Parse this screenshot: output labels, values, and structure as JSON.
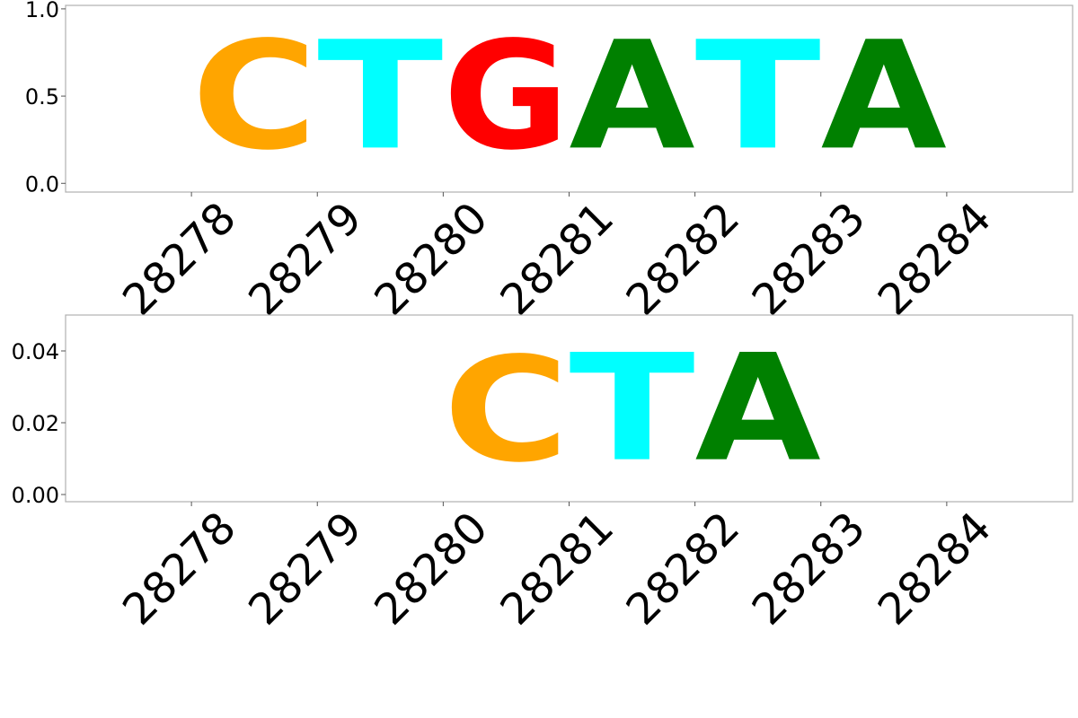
{
  "chart_data": [
    {
      "type": "sequence-logo",
      "positions": [
        "28278",
        "28279",
        "28280",
        "28281",
        "28282",
        "28283",
        "28284"
      ],
      "letters": [
        "C",
        "T",
        "G",
        "A",
        "T",
        "A"
      ],
      "letter_positions": [
        28278,
        28279,
        28280,
        28281,
        28282,
        28283
      ],
      "heights": [
        1.0,
        1.0,
        1.0,
        1.0,
        1.0,
        1.0
      ],
      "ylim": [
        -0.05,
        1.02
      ],
      "yticks": [
        "0.0",
        "0.5",
        "1.0"
      ],
      "ytick_values": [
        0.0,
        0.5,
        1.0
      ],
      "grid": false
    },
    {
      "type": "sequence-logo",
      "positions": [
        "28278",
        "28279",
        "28280",
        "28281",
        "28282",
        "28283",
        "28284"
      ],
      "letters": [
        "C",
        "T",
        "A"
      ],
      "letter_positions": [
        28280,
        28281,
        28282
      ],
      "heights": [
        0.047,
        0.048,
        0.048
      ],
      "ylim": [
        -0.002,
        0.05
      ],
      "yticks": [
        "0.00",
        "0.02",
        "0.04"
      ],
      "ytick_values": [
        0.0,
        0.02,
        0.04
      ],
      "grid": false
    }
  ],
  "colors": {
    "A": "#008000",
    "C": "#ffa500",
    "G": "#ff0000",
    "T": "#00ffff"
  }
}
